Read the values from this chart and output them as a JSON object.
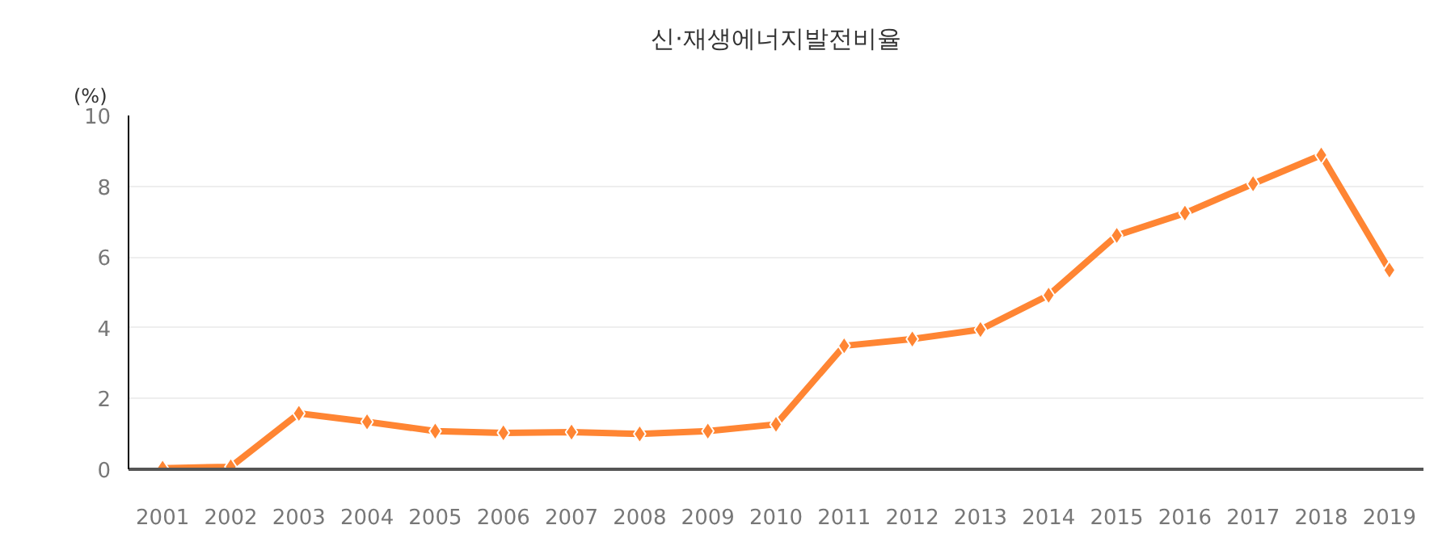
{
  "chart_data": {
    "type": "line",
    "title": "신·재생에너지발전비율",
    "ylabel": "(%)",
    "categories": [
      "2001",
      "2002",
      "2003",
      "2004",
      "2005",
      "2006",
      "2007",
      "2008",
      "2009",
      "2010",
      "2011",
      "2012",
      "2013",
      "2014",
      "2015",
      "2016",
      "2017",
      "2018",
      "2019"
    ],
    "series": [
      {
        "color": "#ff8533",
        "values": [
          0.03,
          0.07,
          1.58,
          1.34,
          1.08,
          1.03,
          1.05,
          1.0,
          1.08,
          1.27,
          3.49,
          3.68,
          3.95,
          4.92,
          6.61,
          7.24,
          8.07,
          8.88,
          5.63
        ]
      }
    ],
    "ylim": [
      0,
      10
    ],
    "yticks": [
      0,
      2,
      4,
      6,
      8,
      10
    ],
    "grid": "y",
    "marker": "diamond",
    "line_style": "solid"
  }
}
